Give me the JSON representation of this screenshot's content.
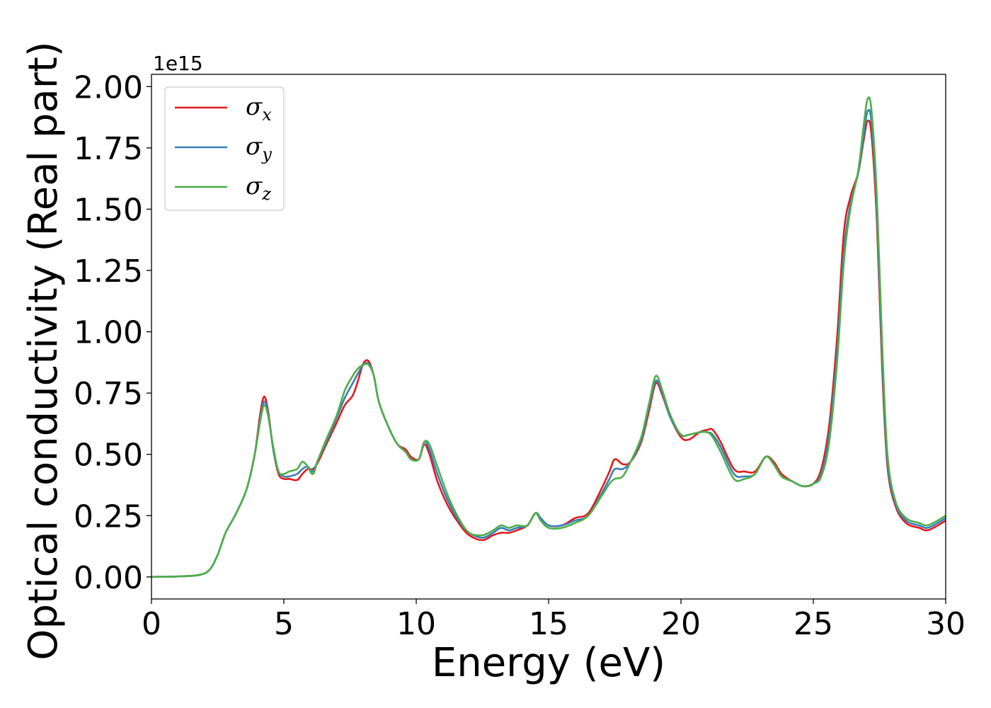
{
  "chart_data": {
    "type": "line",
    "xlabel": "Energy (eV)",
    "ylabel": "Optical conductivity (Real part)",
    "y_offset_text": "1e15",
    "xlim": [
      0,
      30
    ],
    "ylim": [
      -0.09,
      2.05
    ],
    "x_ticks": [
      0,
      5,
      10,
      15,
      20,
      25,
      30
    ],
    "x_tick_labels": [
      "0",
      "5",
      "10",
      "15",
      "20",
      "25",
      "30"
    ],
    "y_ticks": [
      0.0,
      0.25,
      0.5,
      0.75,
      1.0,
      1.25,
      1.5,
      1.75,
      2.0
    ],
    "y_tick_labels": [
      "0.00",
      "0.25",
      "0.50",
      "0.75",
      "1.00",
      "1.25",
      "1.50",
      "1.75",
      "2.00"
    ],
    "grid": false,
    "legend_position": "top-left",
    "series": [
      {
        "name": "σx",
        "sub": "x",
        "color": "#e41a1c",
        "points": [
          [
            0,
            0
          ],
          [
            1,
            0.002
          ],
          [
            1.8,
            0.008
          ],
          [
            2.2,
            0.03
          ],
          [
            2.5,
            0.09
          ],
          [
            2.8,
            0.18
          ],
          [
            3.2,
            0.26
          ],
          [
            3.6,
            0.36
          ],
          [
            3.9,
            0.5
          ],
          [
            4.1,
            0.66
          ],
          [
            4.25,
            0.735
          ],
          [
            4.4,
            0.68
          ],
          [
            4.6,
            0.52
          ],
          [
            4.8,
            0.42
          ],
          [
            5.0,
            0.4
          ],
          [
            5.2,
            0.4
          ],
          [
            5.5,
            0.395
          ],
          [
            5.7,
            0.42
          ],
          [
            5.9,
            0.44
          ],
          [
            6.1,
            0.44
          ],
          [
            6.3,
            0.47
          ],
          [
            6.6,
            0.54
          ],
          [
            7.0,
            0.63
          ],
          [
            7.3,
            0.7
          ],
          [
            7.6,
            0.74
          ],
          [
            7.8,
            0.8
          ],
          [
            8.0,
            0.87
          ],
          [
            8.2,
            0.88
          ],
          [
            8.4,
            0.82
          ],
          [
            8.6,
            0.71
          ],
          [
            9.0,
            0.6
          ],
          [
            9.3,
            0.54
          ],
          [
            9.6,
            0.52
          ],
          [
            9.8,
            0.49
          ],
          [
            10.1,
            0.48
          ],
          [
            10.3,
            0.54
          ],
          [
            10.5,
            0.5
          ],
          [
            10.8,
            0.39
          ],
          [
            11.2,
            0.29
          ],
          [
            11.6,
            0.22
          ],
          [
            12.0,
            0.17
          ],
          [
            12.5,
            0.15
          ],
          [
            12.9,
            0.17
          ],
          [
            13.2,
            0.18
          ],
          [
            13.5,
            0.18
          ],
          [
            13.8,
            0.19
          ],
          [
            14.2,
            0.21
          ],
          [
            14.5,
            0.26
          ],
          [
            14.7,
            0.24
          ],
          [
            15.0,
            0.21
          ],
          [
            15.5,
            0.21
          ],
          [
            16.0,
            0.24
          ],
          [
            16.5,
            0.26
          ],
          [
            17.0,
            0.36
          ],
          [
            17.3,
            0.43
          ],
          [
            17.5,
            0.48
          ],
          [
            17.8,
            0.46
          ],
          [
            18.1,
            0.47
          ],
          [
            18.5,
            0.55
          ],
          [
            18.8,
            0.68
          ],
          [
            19.05,
            0.79
          ],
          [
            19.3,
            0.74
          ],
          [
            19.6,
            0.65
          ],
          [
            20.0,
            0.57
          ],
          [
            20.3,
            0.56
          ],
          [
            20.7,
            0.59
          ],
          [
            21.0,
            0.6
          ],
          [
            21.2,
            0.6
          ],
          [
            21.5,
            0.55
          ],
          [
            22.0,
            0.44
          ],
          [
            22.4,
            0.43
          ],
          [
            22.8,
            0.43
          ],
          [
            23.2,
            0.49
          ],
          [
            23.5,
            0.47
          ],
          [
            23.8,
            0.42
          ],
          [
            24.2,
            0.39
          ],
          [
            24.6,
            0.37
          ],
          [
            25.0,
            0.38
          ],
          [
            25.3,
            0.44
          ],
          [
            25.6,
            0.62
          ],
          [
            25.9,
            0.98
          ],
          [
            26.15,
            1.4
          ],
          [
            26.4,
            1.55
          ],
          [
            26.7,
            1.65
          ],
          [
            26.9,
            1.78
          ],
          [
            27.05,
            1.86
          ],
          [
            27.2,
            1.8
          ],
          [
            27.4,
            1.45
          ],
          [
            27.6,
            0.85
          ],
          [
            27.8,
            0.45
          ],
          [
            28.1,
            0.29
          ],
          [
            28.5,
            0.22
          ],
          [
            29.0,
            0.2
          ],
          [
            29.3,
            0.19
          ],
          [
            29.7,
            0.21
          ],
          [
            30.0,
            0.23
          ]
        ]
      },
      {
        "name": "σy",
        "sub": "y",
        "color": "#377eb8",
        "points": [
          [
            0,
            0
          ],
          [
            1,
            0.002
          ],
          [
            1.8,
            0.008
          ],
          [
            2.2,
            0.03
          ],
          [
            2.5,
            0.09
          ],
          [
            2.8,
            0.18
          ],
          [
            3.2,
            0.26
          ],
          [
            3.6,
            0.36
          ],
          [
            3.9,
            0.5
          ],
          [
            4.1,
            0.64
          ],
          [
            4.25,
            0.715
          ],
          [
            4.4,
            0.67
          ],
          [
            4.6,
            0.52
          ],
          [
            4.8,
            0.43
          ],
          [
            5.0,
            0.41
          ],
          [
            5.2,
            0.41
          ],
          [
            5.5,
            0.42
          ],
          [
            5.7,
            0.44
          ],
          [
            5.9,
            0.45
          ],
          [
            6.1,
            0.43
          ],
          [
            6.3,
            0.48
          ],
          [
            6.6,
            0.55
          ],
          [
            7.0,
            0.65
          ],
          [
            7.3,
            0.73
          ],
          [
            7.6,
            0.79
          ],
          [
            7.8,
            0.83
          ],
          [
            8.0,
            0.865
          ],
          [
            8.2,
            0.87
          ],
          [
            8.4,
            0.82
          ],
          [
            8.6,
            0.71
          ],
          [
            9.0,
            0.6
          ],
          [
            9.3,
            0.54
          ],
          [
            9.6,
            0.51
          ],
          [
            9.8,
            0.48
          ],
          [
            10.1,
            0.48
          ],
          [
            10.3,
            0.55
          ],
          [
            10.5,
            0.52
          ],
          [
            10.8,
            0.42
          ],
          [
            11.2,
            0.31
          ],
          [
            11.6,
            0.23
          ],
          [
            12.0,
            0.18
          ],
          [
            12.5,
            0.16
          ],
          [
            12.9,
            0.18
          ],
          [
            13.2,
            0.2
          ],
          [
            13.5,
            0.19
          ],
          [
            13.8,
            0.2
          ],
          [
            14.2,
            0.21
          ],
          [
            14.5,
            0.26
          ],
          [
            14.7,
            0.24
          ],
          [
            15.0,
            0.21
          ],
          [
            15.5,
            0.21
          ],
          [
            16.0,
            0.23
          ],
          [
            16.5,
            0.25
          ],
          [
            17.0,
            0.34
          ],
          [
            17.3,
            0.4
          ],
          [
            17.5,
            0.44
          ],
          [
            17.8,
            0.44
          ],
          [
            18.1,
            0.47
          ],
          [
            18.5,
            0.56
          ],
          [
            18.8,
            0.7
          ],
          [
            19.05,
            0.8
          ],
          [
            19.3,
            0.75
          ],
          [
            19.6,
            0.65
          ],
          [
            20.0,
            0.58
          ],
          [
            20.3,
            0.58
          ],
          [
            20.7,
            0.59
          ],
          [
            21.0,
            0.59
          ],
          [
            21.2,
            0.58
          ],
          [
            21.5,
            0.53
          ],
          [
            22.0,
            0.42
          ],
          [
            22.4,
            0.41
          ],
          [
            22.8,
            0.42
          ],
          [
            23.2,
            0.49
          ],
          [
            23.5,
            0.46
          ],
          [
            23.8,
            0.41
          ],
          [
            24.2,
            0.39
          ],
          [
            24.6,
            0.37
          ],
          [
            25.0,
            0.38
          ],
          [
            25.3,
            0.42
          ],
          [
            25.6,
            0.58
          ],
          [
            25.9,
            0.92
          ],
          [
            26.15,
            1.32
          ],
          [
            26.4,
            1.52
          ],
          [
            26.7,
            1.65
          ],
          [
            26.9,
            1.8
          ],
          [
            27.05,
            1.9
          ],
          [
            27.2,
            1.85
          ],
          [
            27.4,
            1.5
          ],
          [
            27.6,
            0.9
          ],
          [
            27.8,
            0.47
          ],
          [
            28.1,
            0.3
          ],
          [
            28.5,
            0.23
          ],
          [
            29.0,
            0.21
          ],
          [
            29.3,
            0.2
          ],
          [
            29.7,
            0.22
          ],
          [
            30.0,
            0.24
          ]
        ]
      },
      {
        "name": "σz",
        "sub": "z",
        "color": "#4daf4a",
        "points": [
          [
            0,
            0
          ],
          [
            1,
            0.002
          ],
          [
            1.8,
            0.008
          ],
          [
            2.2,
            0.03
          ],
          [
            2.5,
            0.09
          ],
          [
            2.8,
            0.18
          ],
          [
            3.2,
            0.26
          ],
          [
            3.6,
            0.36
          ],
          [
            3.9,
            0.5
          ],
          [
            4.1,
            0.63
          ],
          [
            4.25,
            0.7
          ],
          [
            4.4,
            0.66
          ],
          [
            4.6,
            0.53
          ],
          [
            4.8,
            0.43
          ],
          [
            5.0,
            0.42
          ],
          [
            5.2,
            0.43
          ],
          [
            5.5,
            0.44
          ],
          [
            5.7,
            0.47
          ],
          [
            5.9,
            0.45
          ],
          [
            6.1,
            0.42
          ],
          [
            6.3,
            0.48
          ],
          [
            6.6,
            0.56
          ],
          [
            7.0,
            0.66
          ],
          [
            7.3,
            0.76
          ],
          [
            7.6,
            0.82
          ],
          [
            7.8,
            0.85
          ],
          [
            8.0,
            0.865
          ],
          [
            8.2,
            0.865
          ],
          [
            8.4,
            0.82
          ],
          [
            8.6,
            0.71
          ],
          [
            9.0,
            0.6
          ],
          [
            9.3,
            0.54
          ],
          [
            9.6,
            0.51
          ],
          [
            9.8,
            0.48
          ],
          [
            10.1,
            0.48
          ],
          [
            10.3,
            0.55
          ],
          [
            10.5,
            0.54
          ],
          [
            10.8,
            0.45
          ],
          [
            11.2,
            0.33
          ],
          [
            11.6,
            0.24
          ],
          [
            12.0,
            0.18
          ],
          [
            12.5,
            0.17
          ],
          [
            12.9,
            0.19
          ],
          [
            13.2,
            0.21
          ],
          [
            13.5,
            0.2
          ],
          [
            13.8,
            0.21
          ],
          [
            14.2,
            0.21
          ],
          [
            14.5,
            0.26
          ],
          [
            14.7,
            0.23
          ],
          [
            15.0,
            0.2
          ],
          [
            15.5,
            0.2
          ],
          [
            16.0,
            0.22
          ],
          [
            16.5,
            0.25
          ],
          [
            17.0,
            0.33
          ],
          [
            17.3,
            0.38
          ],
          [
            17.5,
            0.4
          ],
          [
            17.8,
            0.41
          ],
          [
            18.1,
            0.47
          ],
          [
            18.5,
            0.57
          ],
          [
            18.8,
            0.71
          ],
          [
            19.05,
            0.82
          ],
          [
            19.3,
            0.76
          ],
          [
            19.6,
            0.66
          ],
          [
            20.0,
            0.58
          ],
          [
            20.3,
            0.58
          ],
          [
            20.7,
            0.59
          ],
          [
            21.0,
            0.59
          ],
          [
            21.2,
            0.57
          ],
          [
            21.5,
            0.51
          ],
          [
            22.0,
            0.4
          ],
          [
            22.4,
            0.4
          ],
          [
            22.8,
            0.42
          ],
          [
            23.2,
            0.49
          ],
          [
            23.5,
            0.46
          ],
          [
            23.8,
            0.41
          ],
          [
            24.2,
            0.39
          ],
          [
            24.6,
            0.37
          ],
          [
            25.0,
            0.38
          ],
          [
            25.3,
            0.41
          ],
          [
            25.6,
            0.55
          ],
          [
            25.9,
            0.88
          ],
          [
            26.15,
            1.28
          ],
          [
            26.4,
            1.5
          ],
          [
            26.7,
            1.66
          ],
          [
            26.9,
            1.84
          ],
          [
            27.05,
            1.95
          ],
          [
            27.2,
            1.9
          ],
          [
            27.4,
            1.55
          ],
          [
            27.6,
            0.95
          ],
          [
            27.8,
            0.5
          ],
          [
            28.1,
            0.31
          ],
          [
            28.5,
            0.24
          ],
          [
            29.0,
            0.22
          ],
          [
            29.3,
            0.21
          ],
          [
            29.7,
            0.23
          ],
          [
            30.0,
            0.25
          ]
        ]
      }
    ]
  }
}
